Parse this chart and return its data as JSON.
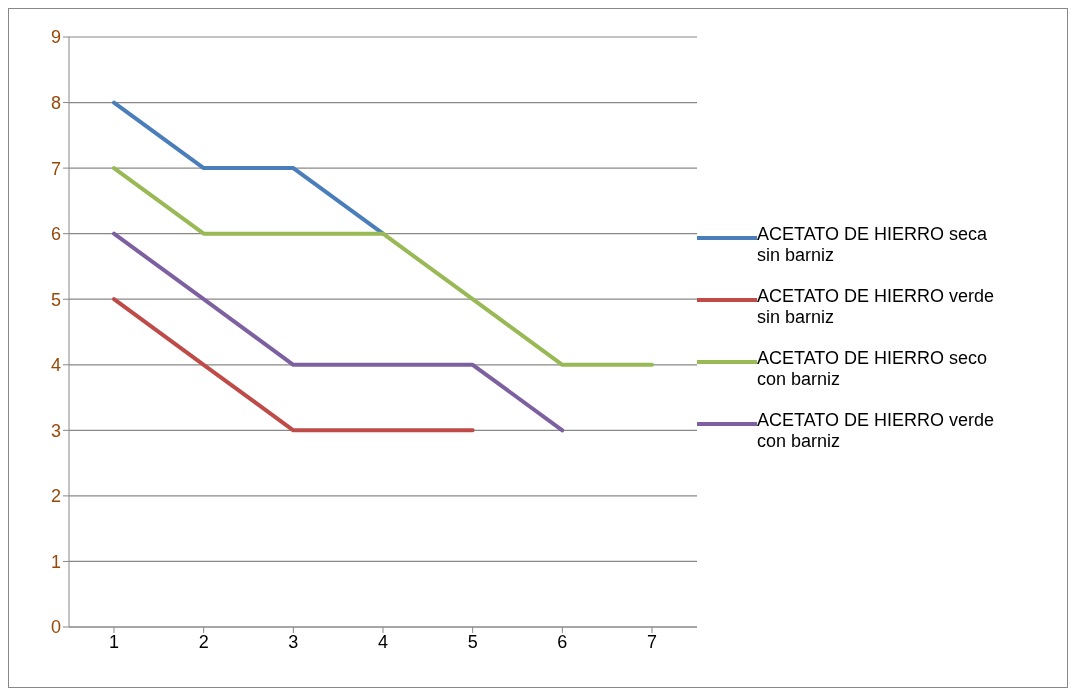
{
  "chart_data": {
    "type": "line",
    "categories": [
      "1",
      "2",
      "3",
      "4",
      "5",
      "6",
      "7"
    ],
    "series": [
      {
        "name": "ACETATO DE HIERRO seca sin barniz",
        "color": "#4a7ebb",
        "values": [
          8,
          7,
          7,
          6,
          null,
          null,
          null
        ]
      },
      {
        "name": "ACETATO DE HIERRO verde sin barniz",
        "color": "#be4b48",
        "values": [
          5,
          4,
          3,
          3,
          3,
          null,
          null
        ]
      },
      {
        "name": "ACETATO DE HIERRO seco con barniz",
        "color": "#98b954",
        "values": [
          7,
          6,
          6,
          6,
          5,
          4,
          4
        ]
      },
      {
        "name": "ACETATO DE HIERRO verde con barniz",
        "color": "#7d60a0",
        "values": [
          6,
          5,
          4,
          4,
          4,
          3,
          null
        ]
      }
    ],
    "ylim": [
      0,
      9
    ],
    "yticks": [
      0,
      1,
      2,
      3,
      4,
      5,
      6,
      7,
      8,
      9
    ],
    "grid": "y",
    "legend": "right",
    "marker": "none",
    "line_style": "solid"
  }
}
